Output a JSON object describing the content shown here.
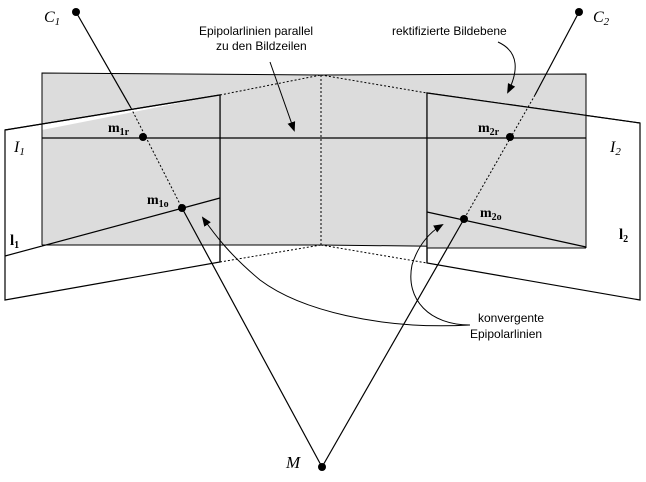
{
  "labels": {
    "c1": "C",
    "c1_sub": "1",
    "c2": "C",
    "c2_sub": "2",
    "rectified_plane": "rektifizierte Bildebene",
    "epipolar_parallel_line1": "Epipolarlinien parallel",
    "epipolar_parallel_line2": "zu den Bildzeilen",
    "convergent_line1": "konvergente",
    "convergent_line2": "Epipolarlinien",
    "i1": "I",
    "i1_sub": "1",
    "i2": "I",
    "i2_sub": "2",
    "l1": "l",
    "l1_sub": "1",
    "l2": "l",
    "l2_sub": "2",
    "m1r": "m",
    "m1r_sub": "1r",
    "m2r": "m",
    "m2r_sub": "2r",
    "m1o": "m",
    "m1o_sub": "1o",
    "m2o": "m",
    "m2o_sub": "2o",
    "point_m": "M"
  },
  "colors": {
    "plane_fill": "#dcdcdc",
    "line": "#000000",
    "background": "#ffffff"
  }
}
